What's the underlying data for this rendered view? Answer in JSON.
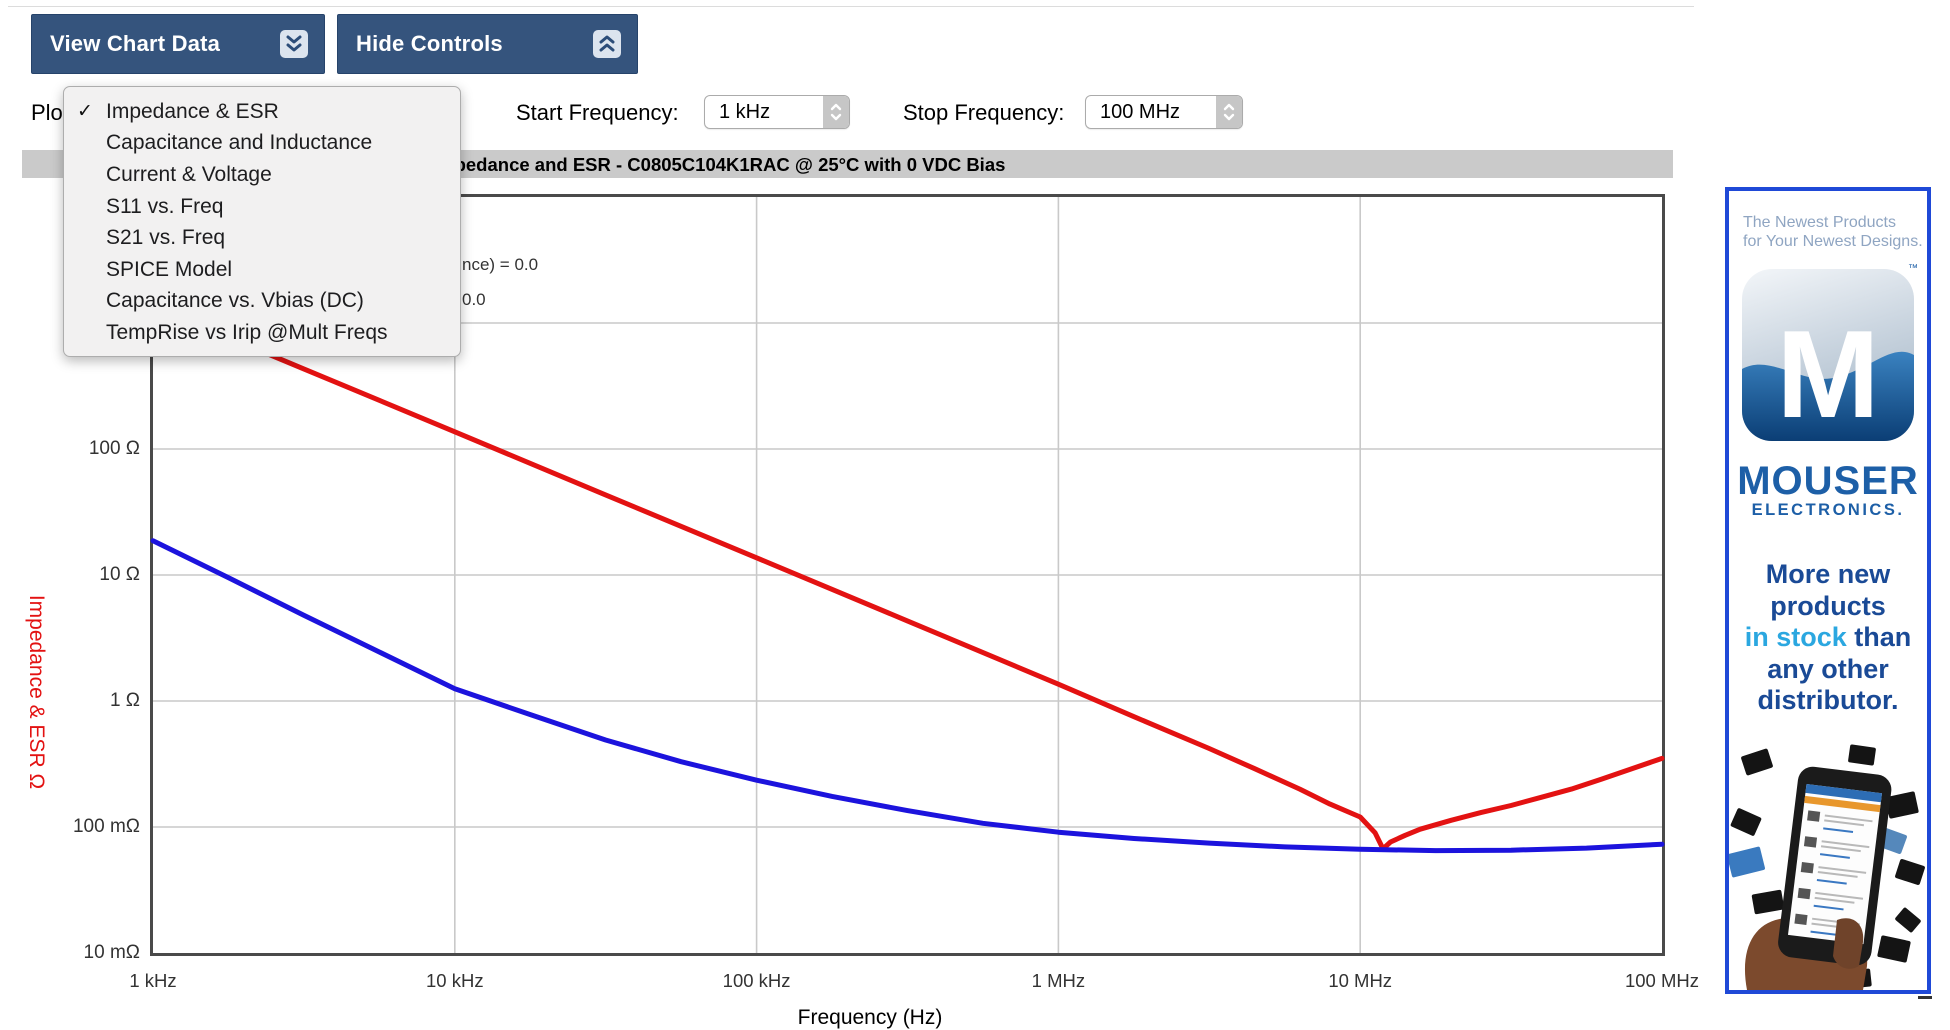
{
  "toolbar": {
    "view_chart_data": "View Chart Data",
    "hide_controls": "Hide Controls"
  },
  "controls": {
    "plot_label_partial": "Plo",
    "start_label": "Start Frequency:",
    "start_value": "1 kHz",
    "stop_label": "Stop Frequency:",
    "stop_value": "100 MHz"
  },
  "menu": {
    "check_glyph": "✓",
    "items": [
      {
        "label": "Impedance & ESR",
        "checked": true
      },
      {
        "label": "Capacitance and Inductance",
        "checked": false
      },
      {
        "label": "Current & Voltage",
        "checked": false
      },
      {
        "label": "S11 vs. Freq",
        "checked": false
      },
      {
        "label": "S21 vs. Freq",
        "checked": false
      },
      {
        "label": "SPICE Model",
        "checked": false
      },
      {
        "label": "Capacitance vs. Vbias (DC)",
        "checked": false
      },
      {
        "label": "TempRise vs Irip @Mult Freqs",
        "checked": false
      }
    ]
  },
  "chart": {
    "title": "Impedance and ESR - C0805C104K1RAC @ 25°C with 0 VDC Bias",
    "y_axis_label": "Impedance & ESR Ω",
    "x_axis_label": "Frequency (Hz)",
    "y_ticks": [
      "100 Ω",
      "10 Ω",
      "1 Ω",
      "100 mΩ",
      "10 mΩ"
    ],
    "x_ticks": [
      "1 kHz",
      "10 kHz",
      "100 kHz",
      "1 MHz",
      "10 MHz",
      "100 MHz"
    ],
    "legend_fragments": [
      "nce) = 0.0",
      "0.0"
    ],
    "colors": {
      "impedance": "#e31212",
      "esr": "#1c13dd",
      "grid": "#c9c9c9",
      "border": "#4a4a4a"
    }
  },
  "chart_data": {
    "type": "line",
    "title": "Impedance and ESR - C0805C104K1RAC @ 25°C with 0 VDC Bias",
    "xlabel": "Frequency (Hz)",
    "ylabel": "Impedance & ESR Ω",
    "x_scale": "log",
    "y_scale": "log",
    "xlim": [
      1000,
      100000000
    ],
    "ylim": [
      0.01,
      10000
    ],
    "grid": true,
    "series": [
      {
        "name": "Impedance",
        "color": "#e31212",
        "points": [
          [
            1000,
            1365
          ],
          [
            3160,
            432
          ],
          [
            10000,
            137
          ],
          [
            31600,
            43.2
          ],
          [
            100000,
            13.7
          ],
          [
            316000,
            4.32
          ],
          [
            1000000,
            1.36
          ],
          [
            1780000,
            0.75
          ],
          [
            3160000,
            0.42
          ],
          [
            4470000,
            0.29
          ],
          [
            6310000,
            0.2
          ],
          [
            7940000,
            0.152
          ],
          [
            10000000,
            0.12
          ],
          [
            11200000,
            0.09
          ],
          [
            11900000,
            0.067
          ],
          [
            12600000,
            0.076
          ],
          [
            14100000,
            0.086
          ],
          [
            15800000,
            0.096
          ],
          [
            20000000,
            0.113
          ],
          [
            25100000,
            0.13
          ],
          [
            31600000,
            0.148
          ],
          [
            39800000,
            0.172
          ],
          [
            50100000,
            0.2
          ],
          [
            63100000,
            0.24
          ],
          [
            79400000,
            0.29
          ],
          [
            100000000,
            0.35
          ]
        ]
      },
      {
        "name": "ESR",
        "color": "#1c13dd",
        "points": [
          [
            1000,
            18.7
          ],
          [
            1780,
            9.5
          ],
          [
            3160,
            4.8
          ],
          [
            5620,
            2.45
          ],
          [
            10000,
            1.25
          ],
          [
            17800,
            0.78
          ],
          [
            31600,
            0.49
          ],
          [
            56200,
            0.33
          ],
          [
            100000,
            0.235
          ],
          [
            178000,
            0.175
          ],
          [
            316000,
            0.135
          ],
          [
            562000,
            0.107
          ],
          [
            1000000,
            0.091
          ],
          [
            1780000,
            0.081
          ],
          [
            3160000,
            0.0745
          ],
          [
            5620000,
            0.0695
          ],
          [
            10000000,
            0.0665
          ],
          [
            17800000,
            0.065
          ],
          [
            31600000,
            0.0655
          ],
          [
            56200000,
            0.068
          ],
          [
            100000000,
            0.073
          ]
        ]
      }
    ]
  },
  "ad": {
    "tagline_line1": "The Newest Products",
    "tagline_line2": "for Your Newest Designs.",
    "logo_letter": "M",
    "tm": "™",
    "brand": "MOUSER",
    "brand_sub": "ELECTRONICS.",
    "headline": {
      "l1": "More new",
      "l2": "products",
      "l3_hl": "in stock",
      "l3_rest": " than",
      "l4": "any other",
      "l5": "distributor."
    }
  }
}
